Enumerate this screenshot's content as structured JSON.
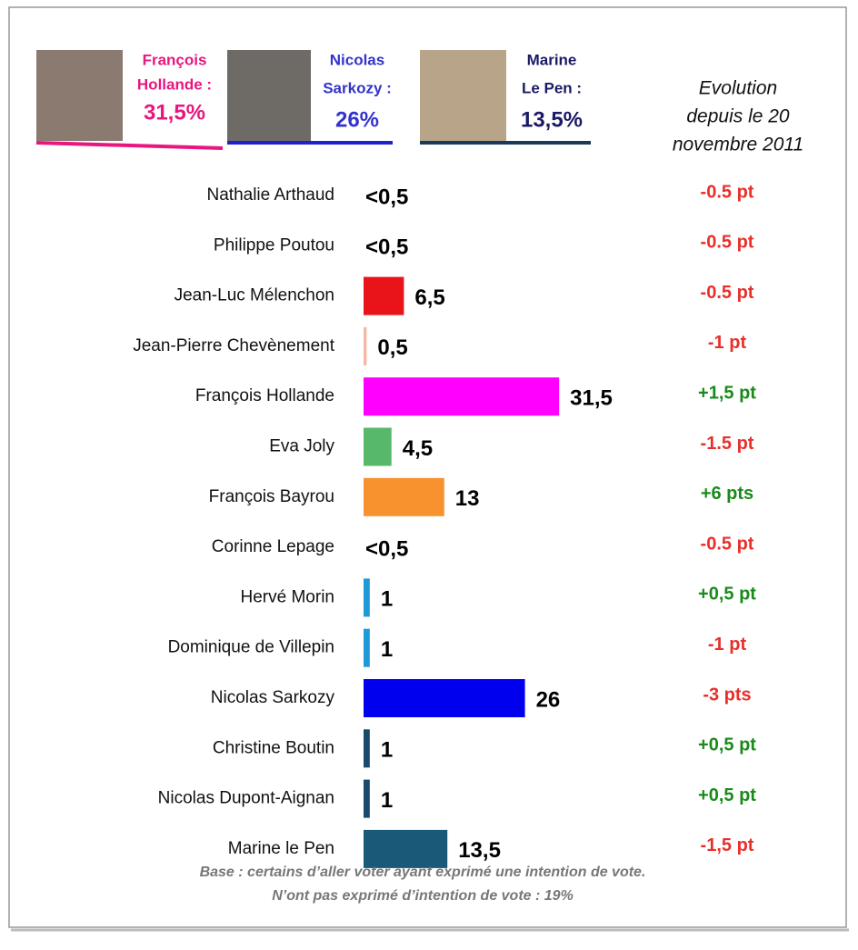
{
  "chart_data": {
    "type": "bar",
    "header": [
      {
        "lines": [
          "François",
          "Hollande :"
        ],
        "value": "31,5%",
        "color": "#e8167f"
      },
      {
        "lines": [
          "Nicolas",
          "Sarkozy :"
        ],
        "value": "26%",
        "color": "#3333cc"
      },
      {
        "lines": [
          "Marine",
          "Le Pen :"
        ],
        "value": "13,5%",
        "color": "#1a1a66"
      }
    ],
    "evolution_title": [
      "Evolution",
      "depuis le 20",
      "novembre 2011"
    ],
    "categories": [
      "Nathalie Arthaud",
      "Philippe Poutou",
      "Jean-Luc Mélenchon",
      "Jean-Pierre Chevènement",
      "François Hollande",
      "Eva Joly",
      "François Bayrou",
      "Corinne Lepage",
      "Hervé Morin",
      "Dominique de Villepin",
      "Nicolas Sarkozy",
      "Christine Boutin",
      "Nicolas Dupont-Aignan",
      "Marine le Pen"
    ],
    "values": [
      0,
      0,
      6.5,
      0.5,
      31.5,
      4.5,
      13,
      0,
      1,
      1,
      26,
      1,
      1,
      13.5
    ],
    "value_labels": [
      "<0,5",
      "<0,5",
      "6,5",
      "0,5",
      "31,5",
      "4,5",
      "13",
      "<0,5",
      "1",
      "1",
      "26",
      "1",
      "1",
      "13,5"
    ],
    "colors": [
      "#e8141a",
      "#e8141a",
      "#e8141a",
      "#f4b8a8",
      "#ff00ff",
      "#58b86a",
      "#f7922e",
      "#f7922e",
      "#1e9ad6",
      "#1e9ad6",
      "#0000ee",
      "#1a4a6b",
      "#1a4a6b",
      "#1a5a78"
    ],
    "evolution": [
      "-0.5 pt",
      "-0.5 pt",
      "-0.5 pt",
      "-1 pt",
      "+1,5 pt",
      "-1.5 pt",
      "+6 pts",
      "-0.5 pt",
      "+0,5 pt",
      "-1 pt",
      "-3 pts",
      "+0,5 pt",
      "+0,5 pt",
      "-1,5 pt"
    ],
    "footnote": [
      "Base : certains d’aller voter ayant exprimé une intention de vote.",
      "N’ont pas exprimé d’intention de vote : 19%"
    ]
  }
}
